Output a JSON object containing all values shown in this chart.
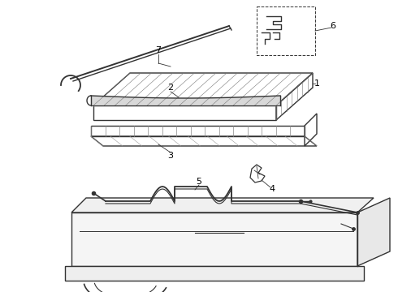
{
  "background_color": "#ffffff",
  "line_color": "#333333",
  "label_color": "#000000",
  "figsize": [
    4.9,
    3.6
  ],
  "dpi": 100
}
